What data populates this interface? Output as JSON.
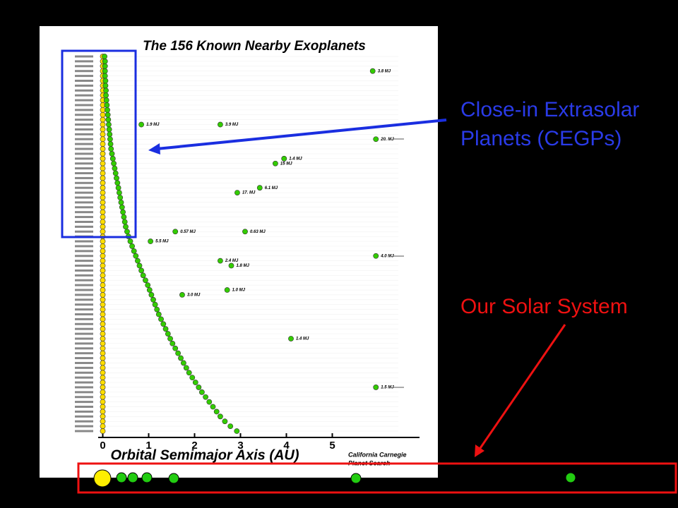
{
  "slide": {
    "cegp_label": [
      "Close-in Extrasolar",
      "Planets (CEGPs)"
    ],
    "solar_label": "Our Solar System"
  },
  "chart_data": {
    "type": "scatter",
    "title": "The 156 Known Nearby Exoplanets",
    "xlabel": "Orbital Semimajor Axis (AU)",
    "credit": [
      "California Carnegie",
      "Planet Search"
    ],
    "xlim": [
      -0.1,
      6.9
    ],
    "xticks": [
      0,
      1,
      2,
      3,
      4,
      5
    ],
    "categories": [
      null,
      null,
      null,
      null,
      null,
      null,
      null,
      null,
      null,
      null,
      null,
      null,
      null,
      null,
      null,
      null,
      null,
      null,
      null,
      null,
      null,
      null,
      null,
      null,
      null,
      null,
      null,
      null,
      null,
      null,
      null,
      null,
      null,
      null,
      null,
      null,
      null,
      null,
      null,
      null,
      null,
      null,
      null,
      null,
      null,
      null,
      null,
      null,
      null,
      null,
      null,
      null,
      null,
      null,
      null,
      null,
      null,
      null,
      null,
      null,
      null,
      null,
      null,
      null,
      null,
      null,
      null,
      null,
      null,
      null,
      null,
      null,
      null,
      null,
      null,
      null,
      null,
      null
    ],
    "series": [
      {
        "color": "#ffdd00",
        "values": [
          0,
          0,
          0,
          0,
          0,
          0,
          0,
          0,
          0,
          0,
          0,
          0,
          0,
          0,
          0,
          0,
          0,
          0,
          0,
          0,
          0,
          0,
          0,
          0,
          0,
          0,
          0,
          0,
          0,
          0,
          0,
          0,
          0,
          0,
          0,
          0,
          0,
          0,
          0,
          0,
          0,
          0,
          0,
          0,
          0,
          0,
          0,
          0,
          0,
          0,
          0,
          0,
          0,
          0,
          0,
          0,
          0,
          0,
          0,
          0,
          0,
          0,
          0,
          0,
          0,
          0,
          0,
          0,
          0,
          0,
          0,
          0,
          0,
          0,
          0,
          0,
          0,
          0
        ]
      },
      {
        "color": "#33cc00",
        "values": [
          0.04,
          0.05,
          0.05,
          0.05,
          0.05,
          0.06,
          0.06,
          0.07,
          0.07,
          0.08,
          0.09,
          0.1,
          0.11,
          0.12,
          0.13,
          0.14,
          0.15,
          0.16,
          0.17,
          0.18,
          0.2,
          0.22,
          0.24,
          0.26,
          0.28,
          0.3,
          0.32,
          0.34,
          0.36,
          0.38,
          0.4,
          0.42,
          0.44,
          0.46,
          0.48,
          0.5,
          0.53,
          0.56,
          0.6,
          0.64,
          0.68,
          0.72,
          0.76,
          0.8,
          0.84,
          0.88,
          0.93,
          0.98,
          1.02,
          1.06,
          1.1,
          1.14,
          1.18,
          1.22,
          1.27,
          1.32,
          1.37,
          1.42,
          1.47,
          1.52,
          1.58,
          1.64,
          1.7,
          1.76,
          1.82,
          1.88,
          1.95,
          2.02,
          2.09,
          2.16,
          2.24,
          2.32,
          2.4,
          2.48,
          2.56,
          2.66,
          2.78,
          2.92
        ]
      },
      {
        "color": "#33cc00",
        "values": [
          null,
          null,
          null,
          5.88,
          null,
          null,
          null,
          null,
          null,
          null,
          null,
          null,
          null,
          null,
          0.84,
          null,
          null,
          5.95,
          null,
          null,
          null,
          3.95,
          3.76,
          null,
          null,
          null,
          null,
          3.42,
          2.93,
          null,
          null,
          null,
          null,
          null,
          null,
          null,
          1.58,
          null,
          1.04,
          null,
          null,
          5.95,
          2.56,
          2.8,
          null,
          null,
          null,
          null,
          2.71,
          1.73,
          null,
          null,
          null,
          null,
          null,
          null,
          null,
          null,
          4.1,
          null,
          null,
          null,
          null,
          null,
          null,
          null,
          null,
          null,
          5.95,
          null,
          null,
          null,
          null,
          null,
          null,
          null,
          null,
          null
        ],
        "mass_labels": [
          null,
          null,
          null,
          "3.8 MJ",
          null,
          null,
          null,
          null,
          null,
          null,
          null,
          null,
          null,
          null,
          "1.9 MJ",
          null,
          null,
          "20. MJ",
          null,
          null,
          null,
          "1.4 MJ",
          "15 MJ",
          null,
          null,
          null,
          null,
          "6.1 MJ",
          "17. MJ",
          null,
          null,
          null,
          null,
          null,
          null,
          null,
          "0.57 MJ",
          null,
          "5.5 MJ",
          null,
          null,
          "4.0 MJ",
          "2.4 MJ",
          "1.8 MJ",
          null,
          null,
          null,
          null,
          "1.0 MJ",
          "3.0 MJ",
          null,
          null,
          null,
          null,
          null,
          null,
          null,
          null,
          "1.4 MJ",
          null,
          null,
          null,
          null,
          null,
          null,
          null,
          null,
          null,
          "1.5 MJ",
          null,
          null,
          null,
          null,
          null,
          null,
          null,
          null,
          null
        ]
      },
      {
        "color": "#33cc00",
        "values": [
          null,
          null,
          null,
          null,
          null,
          null,
          null,
          null,
          null,
          null,
          null,
          null,
          null,
          null,
          2.56,
          null,
          null,
          null,
          null,
          null,
          null,
          null,
          null,
          null,
          null,
          null,
          null,
          null,
          null,
          null,
          null,
          null,
          null,
          null,
          null,
          null,
          3.1,
          null,
          null,
          null,
          null,
          null,
          null,
          null,
          null,
          null,
          null,
          null,
          null,
          null,
          null,
          null,
          null,
          null,
          null,
          null,
          null,
          null,
          null,
          null,
          null,
          null,
          null,
          null,
          null,
          null,
          null,
          null,
          null,
          null,
          null,
          null,
          null,
          null,
          null,
          null,
          null,
          null
        ],
        "mass_labels": [
          null,
          null,
          null,
          null,
          null,
          null,
          null,
          null,
          null,
          null,
          null,
          null,
          null,
          null,
          "3.9 MJ",
          null,
          null,
          null,
          null,
          null,
          null,
          null,
          null,
          null,
          null,
          null,
          null,
          null,
          null,
          null,
          null,
          null,
          null,
          null,
          null,
          null,
          "0.63 MJ",
          null,
          null,
          null,
          null,
          null,
          null,
          null,
          null,
          null,
          null,
          null,
          null,
          null,
          null,
          null,
          null,
          null,
          null,
          null,
          null,
          null,
          null,
          null,
          null,
          null,
          null,
          null,
          null,
          null,
          null,
          null,
          null,
          null,
          null,
          null,
          null,
          null,
          null,
          null,
          null,
          null
        ]
      }
    ]
  }
}
